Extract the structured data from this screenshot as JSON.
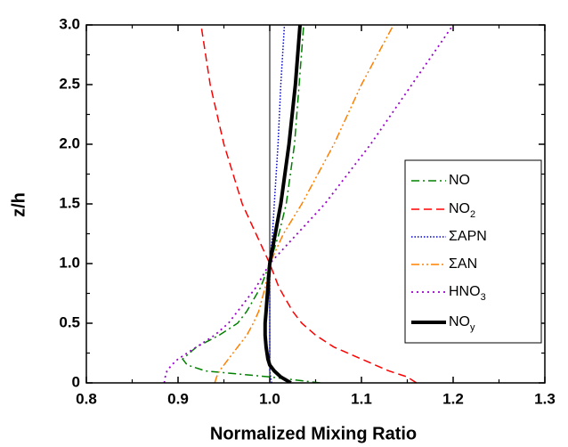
{
  "chart_data": {
    "type": "line",
    "xlabel": "Normalized Mixing Ratio",
    "ylabel": "z/h",
    "y": [
      0,
      0.05,
      0.1,
      0.15,
      0.2,
      0.3,
      0.4,
      0.5,
      0.6,
      0.8,
      1.0,
      1.25,
      1.5,
      2.0,
      2.5,
      3.0
    ],
    "series": [
      {
        "name": "NO",
        "color": "#008000",
        "dash": "9,4,2,4",
        "width": 1.5,
        "values": [
          1.055,
          1.0,
          0.93,
          0.91,
          0.905,
          0.92,
          0.945,
          0.965,
          0.975,
          0.99,
          1.0,
          1.01,
          1.018,
          1.027,
          1.032,
          1.037
        ]
      },
      {
        "name": "NO",
        "sub": "2",
        "color": "#ff0000",
        "dash": "9,5",
        "width": 1.5,
        "values": [
          1.16,
          1.15,
          1.13,
          1.115,
          1.1,
          1.07,
          1.05,
          1.035,
          1.025,
          1.01,
          1.0,
          0.985,
          0.97,
          0.95,
          0.935,
          0.925
        ]
      },
      {
        "name": "ΣAPN",
        "color": "#0000cc",
        "dash": "1.5,2",
        "width": 1.5,
        "values": [
          1.002,
          1.001,
          1.0,
          1.0,
          1.0,
          1.0,
          1.0,
          1.0,
          1.0,
          1.0,
          1.0,
          1.003,
          1.005,
          1.009,
          1.012,
          1.016
        ]
      },
      {
        "name": "ΣAN",
        "color": "#ff8000",
        "dash": "9,3,2,3,2,3",
        "width": 1.5,
        "values": [
          0.94,
          0.942,
          0.945,
          0.95,
          0.955,
          0.965,
          0.975,
          0.982,
          0.988,
          0.995,
          1.0,
          1.015,
          1.035,
          1.07,
          1.1,
          1.135
        ]
      },
      {
        "name": "HNO",
        "sub": "3",
        "color": "#9900cc",
        "dash": "2,4",
        "width": 1.8,
        "values": [
          0.885,
          0.886,
          0.888,
          0.893,
          0.9,
          0.92,
          0.94,
          0.955,
          0.965,
          0.985,
          1.0,
          1.03,
          1.06,
          1.11,
          1.155,
          1.2
        ]
      },
      {
        "name": "NO",
        "sub": "y",
        "color": "#000000",
        "dash": "none",
        "width": 4,
        "values": [
          1.023,
          1.012,
          1.005,
          1.0,
          0.998,
          0.996,
          0.995,
          0.995,
          0.996,
          0.998,
          1.0,
          1.006,
          1.012,
          1.021,
          1.028,
          1.033
        ]
      }
    ],
    "reference_x": 1.0,
    "xlim": [
      0.8,
      1.3
    ],
    "xticks": [
      0.8,
      0.9,
      {
        "value": 1.0,
        "label": "1.0"
      },
      1.1,
      1.2,
      1.3
    ],
    "ylim": [
      0,
      3
    ],
    "yticks": [
      0,
      0.5,
      {
        "value": 1.0,
        "label": "1.0"
      },
      1.5,
      {
        "value": 2.0,
        "label": "2.0"
      },
      2.5,
      {
        "value": 3.0,
        "label": "3.0"
      }
    ]
  }
}
